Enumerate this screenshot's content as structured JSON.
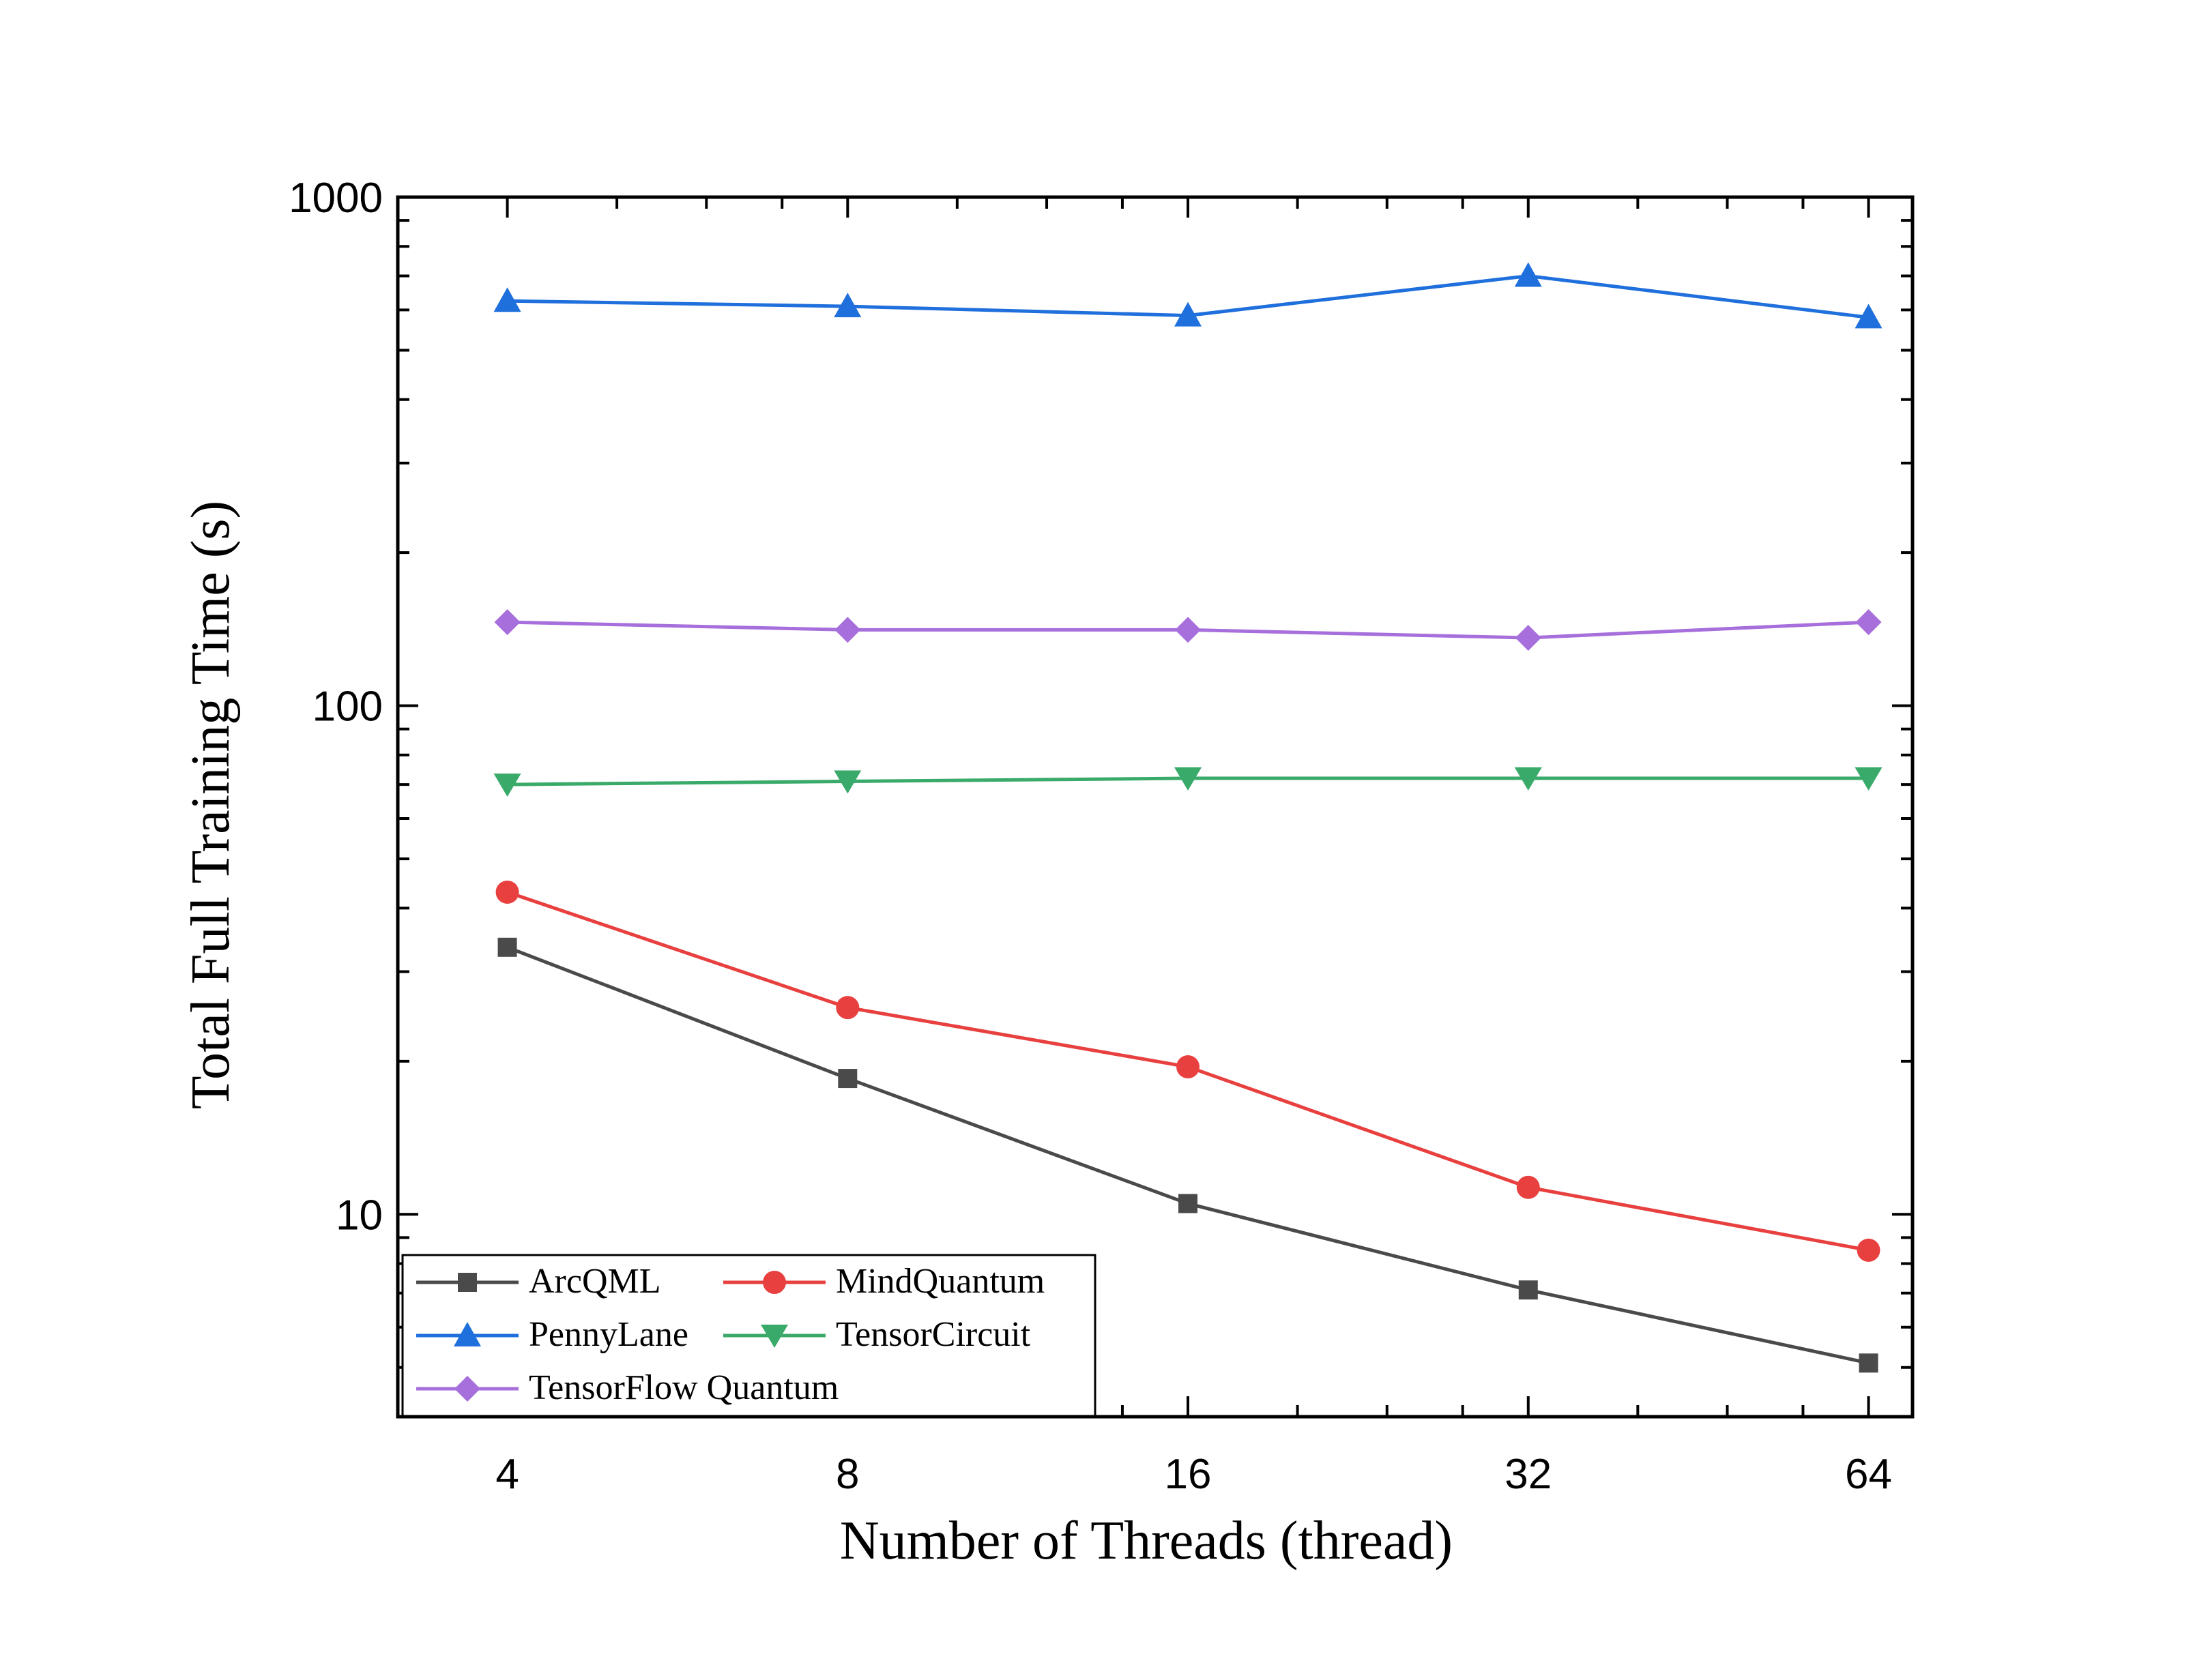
{
  "chart_data": {
    "type": "line",
    "xlabel": "Number of Threads (thread)",
    "ylabel": "Total Full Training Time (s)",
    "x": [
      4,
      8,
      16,
      32,
      64
    ],
    "x_tick_labels": [
      "4",
      "8",
      "16",
      "32",
      "64"
    ],
    "x_scale": "log2",
    "xlim": [
      3.2,
      70
    ],
    "y_scale": "log10",
    "ylim": [
      4,
      1000
    ],
    "y_tick_labels": [
      "10",
      "100",
      "1000"
    ],
    "y_ticks": [
      10,
      100,
      1000
    ],
    "grid": false,
    "legend_position": "bottom-left",
    "series": [
      {
        "name": "ArcQML",
        "color": "#4a4a4a",
        "marker": "square",
        "values": [
          33.5,
          18.5,
          10.5,
          7.1,
          5.1
        ]
      },
      {
        "name": "MindQuantum",
        "color": "#e8403f",
        "marker": "circle",
        "values": [
          43,
          25.5,
          19.5,
          11.3,
          8.5
        ]
      },
      {
        "name": "PennyLane",
        "color": "#1f6fdc",
        "marker": "triangle-up",
        "values": [
          625,
          610,
          585,
          700,
          580
        ]
      },
      {
        "name": "TensorCircuit",
        "color": "#3aaa6a",
        "marker": "triangle-down",
        "values": [
          70,
          71,
          72,
          72,
          72
        ]
      },
      {
        "name": "TensorFlow Quantum",
        "color": "#a66fdc",
        "marker": "diamond",
        "values": [
          146,
          141,
          141,
          136,
          146
        ]
      }
    ]
  }
}
